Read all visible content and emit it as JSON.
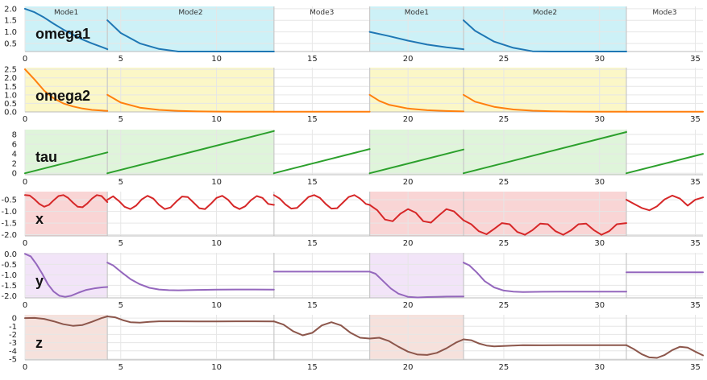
{
  "chart_data": {
    "type": "line",
    "mode_labels": [
      "Mode1",
      "Mode2",
      "Mode3",
      "Mode1",
      "Mode2",
      "Mode3"
    ],
    "mode_boundaries": [
      0,
      4.3,
      13,
      18,
      22.9,
      31.4,
      35.4
    ],
    "x_ticks": [
      0,
      5,
      10,
      15,
      20,
      25,
      30,
      35
    ],
    "xlim": [
      0,
      35.4
    ],
    "grid": true,
    "panels": [
      {
        "key": "omega1",
        "label": "omega1",
        "color": "#1f77b4",
        "shade": "#cdf1f7",
        "shaded_modes": [
          0,
          1,
          3,
          4
        ],
        "ylim": [
          0.15,
          2.1
        ],
        "yticks": [
          0.5,
          1.0,
          1.5,
          2.0
        ],
        "ytick_labels": [
          "0.5",
          "1.0",
          "1.5",
          "2.0"
        ],
        "segments": [
          {
            "x": [
              0,
              0.5,
              1,
              1.5,
              2,
              2.5,
              3,
              3.5,
              4,
              4.3
            ],
            "y": [
              2.0,
              1.85,
              1.62,
              1.35,
              1.1,
              0.88,
              0.67,
              0.5,
              0.35,
              0.25
            ]
          },
          {
            "x": [
              4.3,
              5,
              6,
              7,
              8,
              9,
              10,
              11,
              12,
              13
            ],
            "y": [
              1.5,
              0.95,
              0.5,
              0.26,
              0.13,
              0.07,
              0.04,
              0.02,
              0.01,
              0.01
            ]
          },
          {
            "x": [
              18,
              19,
              20,
              21,
              22,
              22.9
            ],
            "y": [
              1.0,
              0.82,
              0.62,
              0.45,
              0.33,
              0.25
            ]
          },
          {
            "x": [
              22.9,
              23.5,
              24.5,
              25.5,
              26.5,
              27.5,
              28.5,
              29.5,
              30.5,
              31.4
            ],
            "y": [
              1.5,
              1.05,
              0.58,
              0.31,
              0.16,
              0.09,
              0.05,
              0.03,
              0.02,
              0.01
            ]
          }
        ]
      },
      {
        "key": "omega2",
        "label": "omega2",
        "color": "#ff7f0e",
        "shade": "#fbf7c7",
        "shaded_modes": [
          0,
          1,
          3,
          4
        ],
        "ylim": [
          0,
          2.6
        ],
        "yticks": [
          0,
          0.5,
          1.0,
          1.5,
          2.0,
          2.5
        ],
        "ytick_labels": [
          "0.0",
          "0.5",
          "1.0",
          "1.5",
          "2.0",
          "2.5"
        ],
        "segments": [
          {
            "x": [
              0,
              0.5,
              1,
              1.5,
              2,
              2.5,
              3,
              3.5,
              4,
              4.3
            ],
            "y": [
              2.5,
              1.9,
              1.25,
              0.8,
              0.5,
              0.32,
              0.2,
              0.12,
              0.08,
              0.06
            ]
          },
          {
            "x": [
              4.3,
              5,
              6,
              7,
              8,
              9,
              10,
              11,
              12,
              13
            ],
            "y": [
              1.0,
              0.55,
              0.25,
              0.12,
              0.06,
              0.03,
              0.02,
              0.01,
              0.01,
              0.01
            ]
          },
          {
            "x": [
              13,
              18
            ],
            "y": [
              0.01,
              0.01
            ]
          },
          {
            "x": [
              18,
              18.5,
              19,
              20,
              21,
              22,
              22.9
            ],
            "y": [
              1.0,
              0.65,
              0.42,
              0.2,
              0.1,
              0.05,
              0.03
            ]
          },
          {
            "x": [
              22.9,
              23.5,
              24.5,
              25.5,
              26.5,
              27.5,
              28.5,
              29.5,
              30.5,
              31.4
            ],
            "y": [
              1.0,
              0.6,
              0.3,
              0.14,
              0.07,
              0.04,
              0.02,
              0.01,
              0.01,
              0.01
            ]
          },
          {
            "x": [
              31.4,
              35.4
            ],
            "y": [
              0.01,
              0.01
            ]
          }
        ]
      },
      {
        "key": "tau",
        "label": "tau",
        "color": "#2ca02c",
        "shade": "#dff5da",
        "shaded_modes": [
          0,
          1,
          3,
          4
        ],
        "ylim": [
          -0.3,
          9
        ],
        "yticks": [
          0,
          2,
          4,
          6,
          8
        ],
        "ytick_labels": [
          "0",
          "2",
          "4",
          "6",
          "8"
        ],
        "segments": [
          {
            "x": [
              0,
              4.3
            ],
            "y": [
              0,
              4.3
            ]
          },
          {
            "x": [
              4.3,
              13
            ],
            "y": [
              0,
              8.7
            ]
          },
          {
            "x": [
              13,
              18
            ],
            "y": [
              0,
              5.0
            ]
          },
          {
            "x": [
              18,
              22.9
            ],
            "y": [
              0,
              4.9
            ]
          },
          {
            "x": [
              22.9,
              31.4
            ],
            "y": [
              0,
              8.5
            ]
          },
          {
            "x": [
              31.4,
              35.4
            ],
            "y": [
              0,
              4.0
            ]
          }
        ]
      },
      {
        "key": "x",
        "label": "x",
        "color": "#d62728",
        "shade": "#f9d5d5",
        "shaded_modes": [
          0,
          3,
          4
        ],
        "ylim": [
          -2.05,
          -0.15
        ],
        "yticks": [
          -2.0,
          -1.5,
          -1.0,
          -0.5
        ],
        "ytick_labels": [
          "-2.0",
          "-1.5",
          "-1.0",
          "-0.5"
        ],
        "segments": [
          {
            "x": [
              0,
              0.25,
              0.5,
              0.75,
              1,
              1.25,
              1.5,
              1.75,
              2,
              2.25,
              2.5,
              2.75,
              3,
              3.25,
              3.5,
              3.75,
              4,
              4.3
            ],
            "y": [
              -0.3,
              -0.32,
              -0.48,
              -0.68,
              -0.8,
              -0.72,
              -0.52,
              -0.34,
              -0.3,
              -0.42,
              -0.62,
              -0.8,
              -0.82,
              -0.66,
              -0.45,
              -0.3,
              -0.34,
              -0.6
            ]
          },
          {
            "x": [
              4.3,
              4.6,
              4.9,
              5.2,
              5.5,
              5.8,
              6.1,
              6.4,
              6.7,
              7.0,
              7.3,
              7.6,
              7.9,
              8.2,
              8.5,
              8.8,
              9.1,
              9.4,
              9.7,
              10.0,
              10.3,
              10.6,
              10.9,
              11.2,
              11.5,
              11.8,
              12.1,
              12.4,
              12.7,
              13
            ],
            "y": [
              -0.5,
              -0.35,
              -0.55,
              -0.8,
              -0.9,
              -0.75,
              -0.48,
              -0.33,
              -0.45,
              -0.72,
              -0.9,
              -0.83,
              -0.58,
              -0.36,
              -0.38,
              -0.62,
              -0.86,
              -0.9,
              -0.68,
              -0.42,
              -0.33,
              -0.5,
              -0.78,
              -0.9,
              -0.78,
              -0.52,
              -0.34,
              -0.42,
              -0.68,
              -0.72
            ]
          },
          {
            "x": [
              13,
              13.3,
              13.6,
              13.9,
              14.2,
              14.5,
              14.8,
              15.1,
              15.4,
              15.7,
              16.0,
              16.3,
              16.6,
              16.9,
              17.2,
              17.5,
              17.8,
              18
            ],
            "y": [
              -0.3,
              -0.45,
              -0.7,
              -0.88,
              -0.85,
              -0.62,
              -0.38,
              -0.3,
              -0.42,
              -0.68,
              -0.88,
              -0.86,
              -0.62,
              -0.38,
              -0.3,
              -0.45,
              -0.68,
              -0.72
            ]
          },
          {
            "x": [
              18,
              18.4,
              18.8,
              19.2,
              19.6,
              20.0,
              20.4,
              20.8,
              21.2,
              21.6,
              22.0,
              22.4,
              22.9
            ],
            "y": [
              -0.72,
              -0.95,
              -1.35,
              -1.42,
              -1.1,
              -0.9,
              -1.05,
              -1.42,
              -1.48,
              -1.18,
              -0.9,
              -1.0,
              -1.38
            ]
          },
          {
            "x": [
              22.9,
              23.3,
              23.7,
              24.1,
              24.5,
              24.9,
              25.3,
              25.7,
              26.1,
              26.5,
              26.9,
              27.3,
              27.7,
              28.1,
              28.5,
              28.9,
              29.3,
              29.7,
              30.1,
              30.5,
              30.9,
              31.4
            ],
            "y": [
              -1.38,
              -1.55,
              -1.85,
              -1.98,
              -1.75,
              -1.5,
              -1.55,
              -1.88,
              -2.0,
              -1.8,
              -1.52,
              -1.55,
              -1.85,
              -2.0,
              -1.82,
              -1.55,
              -1.52,
              -1.8,
              -2.0,
              -1.85,
              -1.55,
              -1.5
            ]
          },
          {
            "x": [
              31.4,
              31.8,
              32.2,
              32.6,
              33.0,
              33.4,
              33.8,
              34.2,
              34.6,
              35.0,
              35.4
            ],
            "y": [
              -0.5,
              -0.68,
              -0.85,
              -0.95,
              -0.78,
              -0.48,
              -0.32,
              -0.45,
              -0.75,
              -0.5,
              -0.4
            ]
          }
        ]
      },
      {
        "key": "y",
        "label": "y",
        "color": "#9467bd",
        "shade": "#f2e4f8",
        "shaded_modes": [
          0,
          3
        ],
        "ylim": [
          -2.1,
          0.05
        ],
        "yticks": [
          -2.0,
          -1.5,
          -1.0,
          -0.5,
          0.0
        ],
        "ytick_labels": [
          "-2.0",
          "-1.5",
          "-1.0",
          "-0.5",
          "0.0"
        ],
        "segments": [
          {
            "x": [
              0,
              0.3,
              0.6,
              0.9,
              1.2,
              1.5,
              1.8,
              2.1,
              2.4,
              2.8,
              3.2,
              3.6,
              4.0,
              4.3
            ],
            "y": [
              0,
              -0.12,
              -0.5,
              -0.95,
              -1.45,
              -1.8,
              -2.0,
              -2.05,
              -2.0,
              -1.85,
              -1.72,
              -1.65,
              -1.6,
              -1.58
            ]
          },
          {
            "x": [
              4.3,
              4.6,
              5.0,
              5.5,
              6.0,
              6.5,
              7.0,
              7.5,
              8,
              9,
              10,
              11,
              12,
              13
            ],
            "y": [
              -0.42,
              -0.55,
              -0.85,
              -1.2,
              -1.45,
              -1.62,
              -1.7,
              -1.73,
              -1.74,
              -1.72,
              -1.71,
              -1.7,
              -1.7,
              -1.71
            ]
          },
          {
            "x": [
              13,
              18
            ],
            "y": [
              -0.85,
              -0.85
            ]
          },
          {
            "x": [
              18,
              18.3,
              18.7,
              19.1,
              19.5,
              20.0,
              20.5,
              21.0,
              21.5,
              22.0,
              22.9
            ],
            "y": [
              -0.85,
              -0.95,
              -1.3,
              -1.65,
              -1.9,
              -2.05,
              -2.08,
              -2.06,
              -2.05,
              -2.04,
              -2.03
            ]
          },
          {
            "x": [
              22.9,
              23.2,
              23.6,
              24.0,
              24.5,
              25.0,
              25.5,
              26.0,
              27,
              28,
              29,
              30,
              31.4
            ],
            "y": [
              -0.42,
              -0.55,
              -0.9,
              -1.3,
              -1.6,
              -1.75,
              -1.8,
              -1.82,
              -1.81,
              -1.8,
              -1.8,
              -1.8,
              -1.8
            ]
          },
          {
            "x": [
              31.4,
              35.4
            ],
            "y": [
              -0.88,
              -0.88
            ]
          }
        ]
      },
      {
        "key": "z",
        "label": "z",
        "color": "#8c564b",
        "shade": "#f6e1dc",
        "shaded_modes": [
          0,
          3
        ],
        "ylim": [
          -5.1,
          0.4
        ],
        "yticks": [
          -5,
          -4,
          -3,
          -2,
          -1,
          0
        ],
        "ytick_labels": [
          "-5",
          "-4",
          "-3",
          "-2",
          "-1",
          "0"
        ],
        "segments": [
          {
            "x": [
              0,
              0.5,
              1.0,
              1.5,
              2.0,
              2.5,
              3.0,
              3.5,
              4.0,
              4.3
            ],
            "y": [
              0,
              0.02,
              -0.1,
              -0.4,
              -0.75,
              -0.95,
              -0.85,
              -0.45,
              0.0,
              0.2
            ]
          },
          {
            "x": [
              4.3,
              4.7,
              5.1,
              5.5,
              6.0,
              6.5,
              7.0,
              8,
              9,
              10,
              11,
              12,
              13
            ],
            "y": [
              0.2,
              0.1,
              -0.25,
              -0.5,
              -0.55,
              -0.45,
              -0.4,
              -0.4,
              -0.42,
              -0.41,
              -0.4,
              -0.4,
              -0.41
            ]
          },
          {
            "x": [
              13,
              13.5,
              14.0,
              14.5,
              15.0,
              15.5,
              16.0,
              16.5,
              17.0,
              17.5,
              18.0
            ],
            "y": [
              -0.41,
              -0.8,
              -1.6,
              -2.1,
              -1.8,
              -0.9,
              -0.5,
              -0.9,
              -1.8,
              -2.4,
              -2.5
            ]
          },
          {
            "x": [
              18,
              18.5,
              19.0,
              19.5,
              20.0,
              20.5,
              21.0,
              21.5,
              22.0,
              22.5,
              22.9
            ],
            "y": [
              -2.5,
              -2.4,
              -2.8,
              -3.5,
              -4.1,
              -4.45,
              -4.5,
              -4.25,
              -3.7,
              -3.0,
              -2.6
            ]
          },
          {
            "x": [
              22.9,
              23.3,
              23.7,
              24.1,
              24.5,
              25.0,
              25.5,
              26,
              27,
              28,
              29,
              30,
              31.4
            ],
            "y": [
              -2.6,
              -2.7,
              -3.1,
              -3.35,
              -3.45,
              -3.4,
              -3.35,
              -3.3,
              -3.32,
              -3.3,
              -3.31,
              -3.3,
              -3.3
            ]
          },
          {
            "x": [
              31.4,
              31.8,
              32.2,
              32.6,
              33.0,
              33.4,
              33.8,
              34.2,
              34.6,
              35.0,
              35.4
            ],
            "y": [
              -3.3,
              -3.8,
              -4.4,
              -4.8,
              -4.85,
              -4.5,
              -3.9,
              -3.5,
              -3.6,
              -4.1,
              -4.55
            ]
          }
        ]
      }
    ]
  }
}
